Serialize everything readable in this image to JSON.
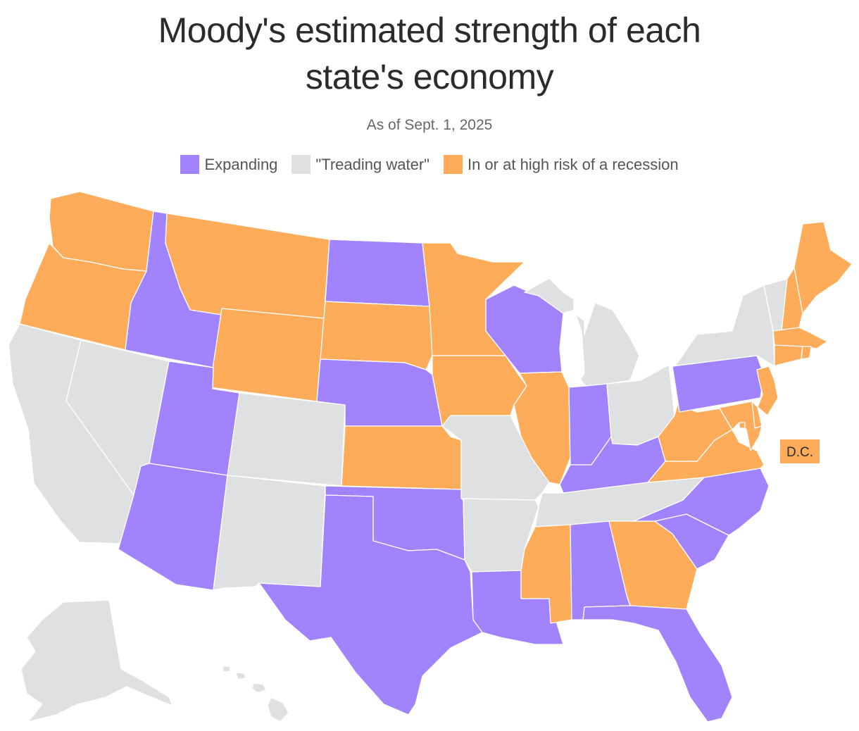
{
  "title_line1": "Moody's estimated strength of each",
  "title_line2": "state's economy",
  "subtitle": "As of Sept. 1, 2025",
  "colors": {
    "expanding": "#a083fd",
    "treading": "#dfe0e2",
    "recession": "#feac5a",
    "lake": "#ffffff"
  },
  "legend": [
    {
      "key": "expanding",
      "label": "Expanding"
    },
    {
      "key": "treading",
      "label": "\"Treading water\""
    },
    {
      "key": "recession",
      "label": "In or at high risk of a recession"
    }
  ],
  "dc_label": "D.C.",
  "states": {
    "WA": "recession",
    "OR": "recession",
    "CA": "treading",
    "NV": "treading",
    "ID": "expanding",
    "MT": "recession",
    "WY": "recession",
    "UT": "expanding",
    "AZ": "expanding",
    "CO": "treading",
    "NM": "treading",
    "ND": "expanding",
    "SD": "recession",
    "NE": "expanding",
    "KS": "recession",
    "OK": "expanding",
    "TX": "expanding",
    "MN": "recession",
    "IA": "recession",
    "MO": "treading",
    "AR": "treading",
    "LA": "expanding",
    "WI": "expanding",
    "IL": "recession",
    "MI": "treading",
    "IN": "expanding",
    "OH": "treading",
    "KY": "expanding",
    "TN": "treading",
    "MS": "recession",
    "AL": "expanding",
    "GA": "recession",
    "FL": "expanding",
    "SC": "expanding",
    "NC": "expanding",
    "VA": "recession",
    "WV": "recession",
    "PA": "expanding",
    "NY": "treading",
    "VT": "treading",
    "NH": "recession",
    "ME": "recession",
    "MA": "recession",
    "CT": "recession",
    "RI": "recession",
    "NJ": "recession",
    "DE": "recession",
    "MD": "recession",
    "DC": "recession",
    "AK": "treading",
    "HI": "treading"
  }
}
